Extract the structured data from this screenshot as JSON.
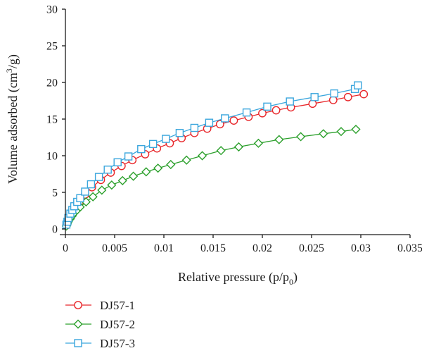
{
  "chart_data": {
    "type": "line",
    "xlabel": "Relative pressure (p/p0)",
    "ylabel": "Volume adsorbed (cm3/g)",
    "xlim": [
      0,
      0.035
    ],
    "ylim": [
      0,
      30
    ],
    "x_ticks": [
      0,
      0.005,
      0.01,
      0.015,
      0.02,
      0.025,
      0.03,
      0.035
    ],
    "x_tick_labels": [
      "0",
      "0.005",
      "0.01",
      "0.015",
      "0.02",
      "0.025",
      "0.03",
      "0.035"
    ],
    "y_ticks": [
      0,
      5,
      10,
      15,
      20,
      25,
      30
    ],
    "y_tick_labels": [
      "0",
      "5",
      "10",
      "15",
      "20",
      "25",
      "30"
    ],
    "grid": false,
    "legend_position": "bottom-left",
    "series": [
      {
        "name": "DJ57-1",
        "color": "#e8262a",
        "marker": "circle",
        "points": [
          [
            0.0001,
            0.5
          ],
          [
            0.0002,
            0.9
          ],
          [
            0.0003,
            1.3
          ],
          [
            0.0005,
            1.8
          ],
          [
            0.0007,
            2.3
          ],
          [
            0.0009,
            2.8
          ],
          [
            0.0012,
            3.3
          ],
          [
            0.0015,
            3.8
          ],
          [
            0.002,
            4.7
          ],
          [
            0.0027,
            5.7
          ],
          [
            0.0036,
            6.7
          ],
          [
            0.0046,
            7.7
          ],
          [
            0.0057,
            8.6
          ],
          [
            0.0068,
            9.4
          ],
          [
            0.0081,
            10.2
          ],
          [
            0.0093,
            11.0
          ],
          [
            0.0106,
            11.7
          ],
          [
            0.0118,
            12.4
          ],
          [
            0.0131,
            13.1
          ],
          [
            0.0144,
            13.7
          ],
          [
            0.0157,
            14.3
          ],
          [
            0.0171,
            14.8
          ],
          [
            0.0186,
            15.3
          ],
          [
            0.02,
            15.8
          ],
          [
            0.0214,
            16.2
          ],
          [
            0.0229,
            16.6
          ],
          [
            0.0251,
            17.1
          ],
          [
            0.0272,
            17.6
          ],
          [
            0.0287,
            18.0
          ],
          [
            0.0303,
            18.4
          ]
        ]
      },
      {
        "name": "DJ57-2",
        "color": "#2ca02c",
        "marker": "diamond",
        "points": [
          [
            0.0001,
            0.4
          ],
          [
            0.0002,
            0.7
          ],
          [
            0.0003,
            1.0
          ],
          [
            0.0005,
            1.4
          ],
          [
            0.0007,
            1.8
          ],
          [
            0.0009,
            2.2
          ],
          [
            0.0012,
            2.6
          ],
          [
            0.0015,
            3.0
          ],
          [
            0.0021,
            3.7
          ],
          [
            0.0028,
            4.4
          ],
          [
            0.0037,
            5.3
          ],
          [
            0.0047,
            6.0
          ],
          [
            0.0058,
            6.6
          ],
          [
            0.0069,
            7.2
          ],
          [
            0.0082,
            7.8
          ],
          [
            0.0094,
            8.3
          ],
          [
            0.0107,
            8.8
          ],
          [
            0.0123,
            9.4
          ],
          [
            0.0139,
            10.0
          ],
          [
            0.0158,
            10.7
          ],
          [
            0.0176,
            11.2
          ],
          [
            0.0196,
            11.7
          ],
          [
            0.0217,
            12.2
          ],
          [
            0.0239,
            12.6
          ],
          [
            0.0262,
            13.0
          ],
          [
            0.028,
            13.3
          ],
          [
            0.0295,
            13.6
          ]
        ]
      },
      {
        "name": "DJ57-3",
        "color": "#3aa6dd",
        "marker": "square",
        "points": [
          [
            0.0001,
            0.6
          ],
          [
            0.0002,
            1.0
          ],
          [
            0.0003,
            1.5
          ],
          [
            0.0005,
            2.1
          ],
          [
            0.0007,
            2.6
          ],
          [
            0.0009,
            3.1
          ],
          [
            0.0012,
            3.7
          ],
          [
            0.0015,
            4.2
          ],
          [
            0.002,
            5.1
          ],
          [
            0.0026,
            6.1
          ],
          [
            0.0034,
            7.1
          ],
          [
            0.0043,
            8.1
          ],
          [
            0.0053,
            9.1
          ],
          [
            0.0064,
            9.9
          ],
          [
            0.0077,
            10.9
          ],
          [
            0.0089,
            11.6
          ],
          [
            0.0102,
            12.3
          ],
          [
            0.0116,
            13.1
          ],
          [
            0.0131,
            13.8
          ],
          [
            0.0146,
            14.5
          ],
          [
            0.0162,
            15.1
          ],
          [
            0.0184,
            15.9
          ],
          [
            0.0205,
            16.7
          ],
          [
            0.0228,
            17.4
          ],
          [
            0.0253,
            18.0
          ],
          [
            0.0273,
            18.5
          ],
          [
            0.0294,
            19.1
          ],
          [
            0.0297,
            19.6
          ]
        ]
      }
    ]
  }
}
